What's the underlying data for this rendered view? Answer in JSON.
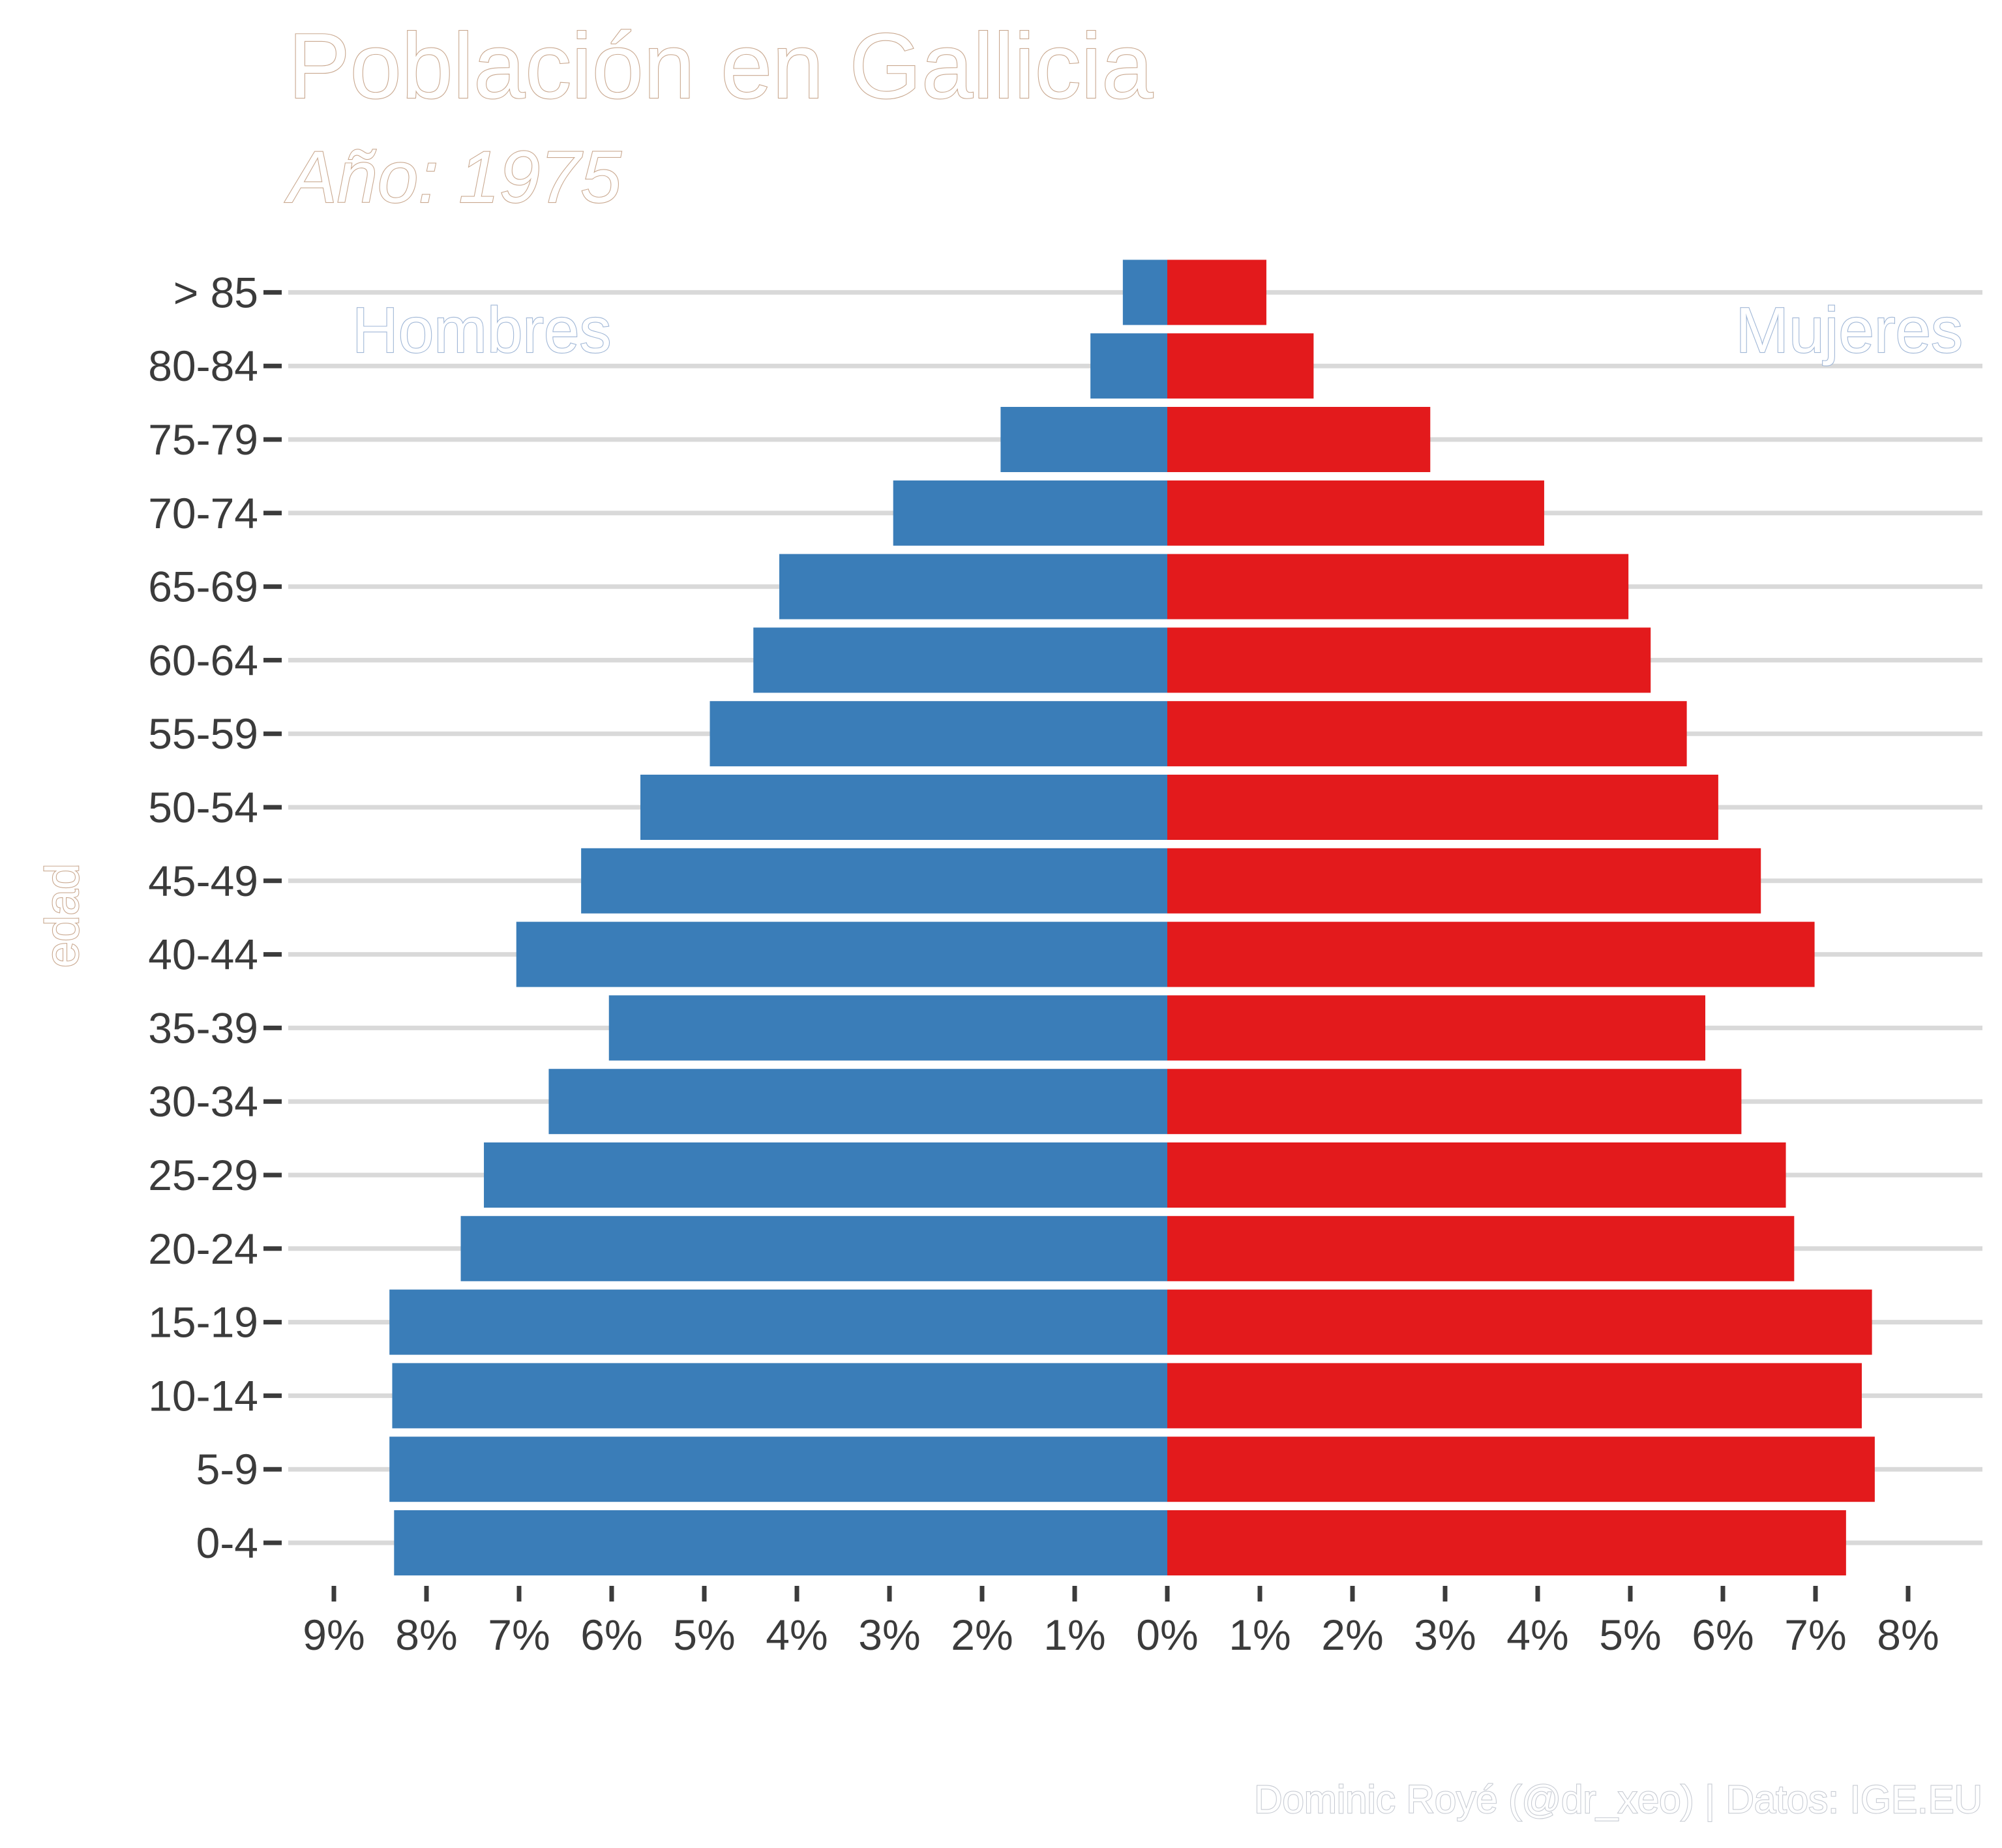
{
  "title": "Población en Gallicia",
  "subtitle": "Año: 1975",
  "caption": "Dominic Royé (@dr_xeo) | Datos: IGE.EU",
  "colors": {
    "hombres": "#3a7db8",
    "mujeres": "#e31a1c",
    "outline_title": "#c9a88f",
    "outline_label": "#9fb6d6",
    "outline_caption": "#c7cbd3",
    "axis_text": "#3b3b3b",
    "grid": "#d9d9d9"
  },
  "chart_data": {
    "type": "bar",
    "orientation": "horizontal",
    "title": "Población en Gallicia",
    "subtitle": "Año: 1975",
    "ylabel": "edad",
    "xlabel": "",
    "categories": [
      "0-4",
      "5-9",
      "10-14",
      "15-19",
      "20-24",
      "25-29",
      "30-34",
      "35-39",
      "40-44",
      "45-49",
      "50-54",
      "55-59",
      "60-64",
      "65-69",
      "70-74",
      "75-79",
      "80-84",
      "> 85"
    ],
    "series": [
      {
        "name": "Hombres",
        "direction": "left",
        "values": [
          8.35,
          8.4,
          8.37,
          8.4,
          7.63,
          7.38,
          6.68,
          6.03,
          7.03,
          6.33,
          5.69,
          4.94,
          4.47,
          4.19,
          2.96,
          1.8,
          0.83,
          0.48
        ]
      },
      {
        "name": "Mujeres",
        "direction": "right",
        "values": [
          7.33,
          7.64,
          7.5,
          7.61,
          6.77,
          6.68,
          6.2,
          5.81,
          6.99,
          6.41,
          5.95,
          5.61,
          5.22,
          4.98,
          4.07,
          2.84,
          1.58,
          1.07
        ]
      }
    ],
    "xlim": [
      -9,
      8
    ],
    "x_ticks": [
      -9,
      -8,
      -7,
      -6,
      -5,
      -4,
      -3,
      -2,
      -1,
      0,
      1,
      2,
      3,
      4,
      5,
      6,
      7,
      8
    ],
    "x_tick_labels": [
      "9%",
      "8%",
      "7%",
      "6%",
      "5%",
      "4%",
      "3%",
      "2%",
      "1%",
      "0%",
      "1%",
      "2%",
      "3%",
      "4%",
      "5%",
      "6%",
      "7%",
      "8%"
    ],
    "grid": "horizontal",
    "legend": "none",
    "annotations": [
      "Hombres",
      "Mujeres"
    ]
  }
}
